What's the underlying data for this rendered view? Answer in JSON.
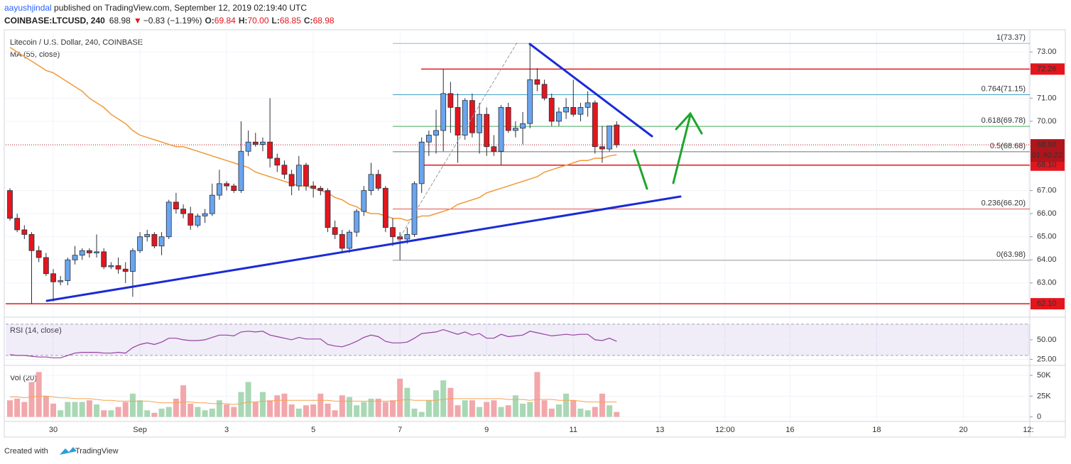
{
  "header": {
    "author": "aayushjindal",
    "published": " published on TradingView.com, September 12, 2019 02:19:40 UTC",
    "symbol": "COINBASE:LTCUSD, 240",
    "price": "68.98",
    "arrow": "▼",
    "change": "−0.83 (−1.19%)",
    "ohlc": [
      {
        "key": "O:",
        "value": "69.84"
      },
      {
        "key": "H:",
        "value": "70.00"
      },
      {
        "key": "L:",
        "value": "68.85"
      },
      {
        "key": "C:",
        "value": "68.98"
      }
    ]
  },
  "footer": {
    "created": "Created with",
    "brand": "TradingView"
  },
  "chart_data": [
    {
      "type": "candlestick",
      "title": "Litecoin / U.S. Dollar, 240, COINBASE",
      "colors": {
        "up": "#6aa5ee",
        "down": "#e3161e",
        "outline": "#2a2e39"
      },
      "open": [
        67.0,
        65.8,
        65.3,
        65.1,
        64.4,
        64.1,
        63.4,
        63.05,
        63.1,
        64.0,
        64.2,
        64.4,
        64.3,
        64.35,
        63.7,
        63.75,
        63.6,
        63.5,
        64.4,
        65.0,
        65.1,
        64.6,
        65.0,
        66.5,
        66.2,
        66.0,
        65.5,
        65.9,
        66.0,
        66.8,
        67.3,
        67.2,
        67.0,
        68.7,
        69.1,
        69.0,
        69.1,
        68.4,
        68.1,
        67.7,
        67.2,
        68.1,
        67.2,
        67.1,
        67.0,
        65.4,
        65.1,
        64.5,
        65.2,
        66.1,
        67.0,
        67.7,
        67.1,
        65.4,
        65.0,
        64.9,
        65.1,
        67.3,
        69.1,
        69.4,
        69.6,
        71.2,
        70.6,
        69.4,
        70.9,
        69.5,
        70.3,
        68.9,
        68.7,
        70.6,
        69.6,
        69.7,
        69.9,
        71.8,
        71.6,
        71.0,
        70.0,
        70.4,
        70.6,
        70.3,
        70.6,
        70.8,
        68.9,
        68.8,
        69.84
      ],
      "high": [
        67.1,
        66.0,
        65.5,
        65.2,
        64.6,
        64.3,
        63.6,
        63.3,
        64.1,
        64.6,
        64.5,
        64.5,
        65.1,
        64.5,
        63.9,
        64.1,
        63.9,
        64.5,
        65.2,
        65.3,
        65.2,
        65.2,
        66.6,
        66.9,
        66.4,
        66.3,
        66.0,
        66.2,
        67.3,
        67.9,
        67.4,
        67.3,
        70.0,
        69.6,
        69.5,
        69.3,
        71.0,
        68.6,
        68.3,
        67.9,
        68.5,
        68.2,
        67.4,
        67.2,
        67.1,
        65.7,
        65.3,
        65.3,
        66.2,
        67.2,
        68.2,
        67.9,
        67.2,
        65.8,
        65.2,
        65.4,
        67.4,
        69.3,
        69.6,
        70.5,
        72.26,
        71.7,
        71.2,
        71.0,
        71.2,
        70.8,
        70.6,
        69.4,
        70.7,
        70.8,
        70.0,
        70.4,
        73.37,
        72.3,
        71.8,
        71.2,
        70.6,
        71.0,
        71.8,
        70.8,
        71.3,
        70.9,
        69.8,
        69.8,
        70.0
      ],
      "low": [
        65.7,
        65.2,
        64.9,
        62.1,
        63.9,
        63.3,
        62.2,
        62.9,
        62.9,
        63.8,
        64.0,
        64.1,
        64.1,
        63.6,
        63.6,
        63.4,
        63.0,
        62.4,
        64.3,
        64.8,
        64.5,
        64.2,
        64.9,
        66.0,
        65.8,
        65.3,
        65.4,
        65.6,
        65.9,
        66.6,
        67.0,
        66.9,
        66.9,
        68.5,
        68.9,
        68.7,
        68.0,
        67.8,
        67.5,
        66.8,
        67.0,
        67.0,
        66.7,
        66.8,
        65.2,
        64.9,
        64.3,
        64.3,
        65.0,
        65.9,
        66.8,
        67.0,
        65.2,
        64.6,
        63.98,
        64.7,
        65.0,
        66.9,
        68.5,
        68.6,
        68.7,
        69.5,
        68.2,
        69.2,
        69.3,
        68.6,
        68.5,
        68.5,
        68.1,
        69.5,
        69.3,
        69.0,
        69.7,
        71.3,
        70.9,
        69.8,
        69.8,
        70.1,
        70.2,
        70.0,
        70.2,
        68.6,
        68.2,
        68.7,
        68.85
      ],
      "close": [
        65.8,
        65.3,
        65.1,
        64.4,
        64.1,
        63.4,
        63.05,
        63.1,
        64.0,
        64.2,
        64.4,
        64.3,
        64.35,
        63.7,
        63.75,
        63.6,
        63.5,
        64.4,
        65.0,
        65.1,
        64.6,
        65.0,
        66.5,
        66.2,
        66.0,
        65.5,
        65.9,
        66.0,
        66.8,
        67.3,
        67.2,
        67.0,
        68.7,
        69.1,
        69.0,
        69.1,
        68.4,
        68.1,
        67.7,
        67.2,
        68.1,
        67.2,
        67.1,
        67.0,
        65.4,
        65.1,
        64.5,
        65.2,
        66.1,
        67.0,
        67.7,
        67.1,
        65.4,
        65.0,
        64.9,
        65.1,
        67.3,
        69.1,
        69.4,
        69.6,
        71.2,
        70.6,
        69.4,
        70.9,
        69.5,
        70.3,
        68.9,
        68.7,
        70.6,
        69.6,
        69.7,
        69.9,
        71.8,
        71.6,
        71.0,
        70.0,
        70.4,
        70.6,
        70.3,
        70.6,
        70.8,
        68.9,
        68.8,
        69.8,
        68.98
      ],
      "ma": {
        "name": "MA (55, close)",
        "color": "#f09a3a",
        "values": [
          73.2,
          73.0,
          72.8,
          72.6,
          72.4,
          72.2,
          72.1,
          71.9,
          71.7,
          71.5,
          71.3,
          71.0,
          70.8,
          70.6,
          70.3,
          70.1,
          69.9,
          69.6,
          69.4,
          69.3,
          69.2,
          69.1,
          69.0,
          68.9,
          68.9,
          68.8,
          68.7,
          68.6,
          68.5,
          68.4,
          68.3,
          68.2,
          68.1,
          68.0,
          67.8,
          67.7,
          67.6,
          67.5,
          67.4,
          67.3,
          67.2,
          67.2,
          67.1,
          67.0,
          66.9,
          66.7,
          66.6,
          66.4,
          66.3,
          66.1,
          66.0,
          66.0,
          65.9,
          65.8,
          65.8,
          65.7,
          65.8,
          65.9,
          65.9,
          66.0,
          66.1,
          66.2,
          66.4,
          66.5,
          66.6,
          66.7,
          66.9,
          67.0,
          67.1,
          67.2,
          67.3,
          67.4,
          67.5,
          67.6,
          67.8,
          67.9,
          68.0,
          68.1,
          68.2,
          68.3,
          68.3,
          68.4,
          68.4,
          68.5,
          68.55
        ]
      },
      "ylim": [
        61.52,
        73.96
      ],
      "yticks": [
        {
          "value": 63,
          "label": "63.00"
        },
        {
          "value": 64,
          "label": "64.00"
        },
        {
          "value": 65,
          "label": "65.00"
        },
        {
          "value": 66,
          "label": "66.00"
        },
        {
          "value": 67,
          "label": "67.00"
        },
        {
          "value": 70,
          "label": "70.00"
        },
        {
          "value": 71,
          "label": "71.00"
        },
        {
          "value": 73,
          "label": "73.00"
        }
      ],
      "grid": true,
      "levels": [
        72.26,
        {
          "value": 68.1,
          "label": "68.10"
        },
        {
          "value": 62.1,
          "label": "62.10"
        }
      ],
      "level_color": "#e3161e",
      "fib": [
        {
          "value": 73.37,
          "label": "1(73.37)",
          "color": "#8fb8cf"
        },
        {
          "value": 71.15,
          "label": "0.764(71.15)",
          "color": "#3d9fc4"
        },
        {
          "value": 69.78,
          "label": "0.618(69.78)",
          "color": "#43a85a"
        },
        {
          "value": 68.68,
          "label": "0.5(68.68)",
          "color": "#707070"
        },
        {
          "value": 66.2,
          "label": "0.236(66.20)",
          "color": "#d9534f"
        },
        {
          "value": 63.98,
          "label": "0(63.98)",
          "color": "#9a9a9a"
        }
      ],
      "last_price": 68.98,
      "last_color": "#b0151b",
      "countdown": "01:40:22"
    },
    {
      "type": "line",
      "title": "RSI (14, close)",
      "color": "#9440a0",
      "values": [
        31,
        30,
        30,
        29,
        28,
        28,
        27,
        27,
        30,
        33,
        34,
        34,
        34,
        33,
        33,
        34,
        33,
        40,
        44,
        46,
        44,
        47,
        52,
        52,
        50,
        49,
        49,
        50,
        53,
        56,
        56,
        55,
        60,
        61,
        60,
        61,
        56,
        54,
        52,
        50,
        53,
        51,
        51,
        51,
        44,
        42,
        41,
        44,
        48,
        53,
        56,
        54,
        48,
        46,
        46,
        47,
        52,
        58,
        59,
        60,
        63,
        60,
        57,
        60,
        56,
        58,
        52,
        52,
        57,
        54,
        55,
        56,
        61,
        59,
        57,
        55,
        56,
        57,
        56,
        57,
        57,
        50,
        49,
        52,
        48
      ],
      "ylim": [
        20,
        78
      ],
      "yticks": [
        {
          "value": 50,
          "label": "50.00"
        },
        {
          "value": 25,
          "label": "25.00"
        }
      ],
      "band": [
        30,
        70
      ],
      "band_color": "#9575cd"
    },
    {
      "type": "bar",
      "title": "Vol (20)",
      "colors": {
        "up": "#a8d8b4",
        "down": "#f2a7aa"
      },
      "values": [
        20,
        22,
        18,
        42,
        54,
        25,
        16,
        8,
        18,
        18,
        18,
        20,
        15,
        8,
        8,
        12,
        18,
        28,
        20,
        8,
        5,
        10,
        12,
        22,
        38,
        16,
        12,
        8,
        10,
        20,
        15,
        12,
        30,
        42,
        18,
        30,
        20,
        26,
        28,
        15,
        10,
        14,
        15,
        28,
        16,
        8,
        26,
        24,
        14,
        18,
        22,
        22,
        18,
        20,
        46,
        35,
        10,
        6,
        20,
        32,
        44,
        35,
        14,
        20,
        20,
        12,
        18,
        20,
        12,
        14,
        26,
        16,
        18,
        54,
        20,
        10,
        15,
        28,
        20,
        10,
        8,
        12,
        28,
        14,
        6
      ],
      "ma": {
        "color": "#f7a24f",
        "values": [
          24,
          24,
          23,
          24,
          25,
          25,
          24,
          23,
          23,
          22,
          22,
          22,
          21,
          20,
          20,
          19,
          19,
          19,
          19,
          19,
          18,
          17,
          17,
          17,
          18,
          18,
          17,
          17,
          16,
          16,
          16,
          15,
          16,
          18,
          18,
          19,
          19,
          20,
          20,
          20,
          20,
          20,
          20,
          20,
          20,
          19,
          19,
          19,
          19,
          19,
          19,
          19,
          19,
          19,
          20,
          21,
          20,
          20,
          20,
          20,
          21,
          22,
          22,
          22,
          22,
          22,
          22,
          22,
          22,
          21,
          21,
          21,
          20,
          21,
          21,
          21,
          20,
          20,
          20,
          19,
          18,
          18,
          18,
          18,
          18
        ]
      },
      "ylim": [
        -2,
        56
      ],
      "yticks": [
        {
          "value": 50,
          "label": "50K"
        },
        {
          "value": 25,
          "label": "25K"
        },
        0
      ],
      "x_labels": [
        "30",
        "Sep",
        "3",
        "5",
        "7",
        "9",
        "11",
        "13",
        "12:00",
        "16",
        "18",
        "20",
        "12:"
      ]
    }
  ]
}
